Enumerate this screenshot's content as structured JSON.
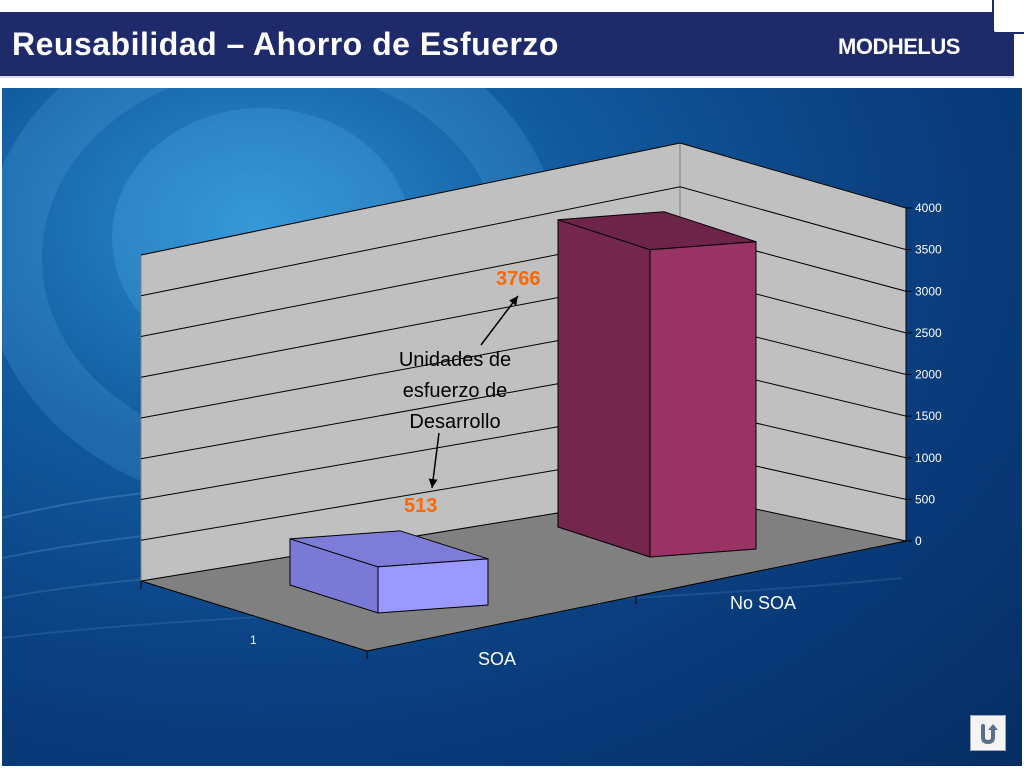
{
  "header": {
    "title": "Reusabilidad – Ahorro de Esfuerzo",
    "logo_text": "MODHELUS"
  },
  "colors": {
    "header_bg": "#1f2a6b",
    "bar_soa": "#9999ff",
    "bar_no_soa": "#993366",
    "data_label": "#ff6600",
    "wall": "#c0c0c0",
    "floor": "#808080"
  },
  "chart_data": {
    "type": "bar",
    "categories": [
      "SOA",
      "No SOA"
    ],
    "values": [
      513,
      3766
    ],
    "data_labels": [
      "513",
      "3766"
    ],
    "ylim": [
      0,
      4000
    ],
    "yticks": [
      0,
      500,
      1000,
      1500,
      2000,
      2500,
      3000,
      3500,
      4000
    ],
    "depth_axis_label": "1",
    "annotation": "Unidades de esfuerzo de Desarrollo",
    "grid": true,
    "style": "3d"
  },
  "footer": {
    "return_icon": "return-icon"
  }
}
